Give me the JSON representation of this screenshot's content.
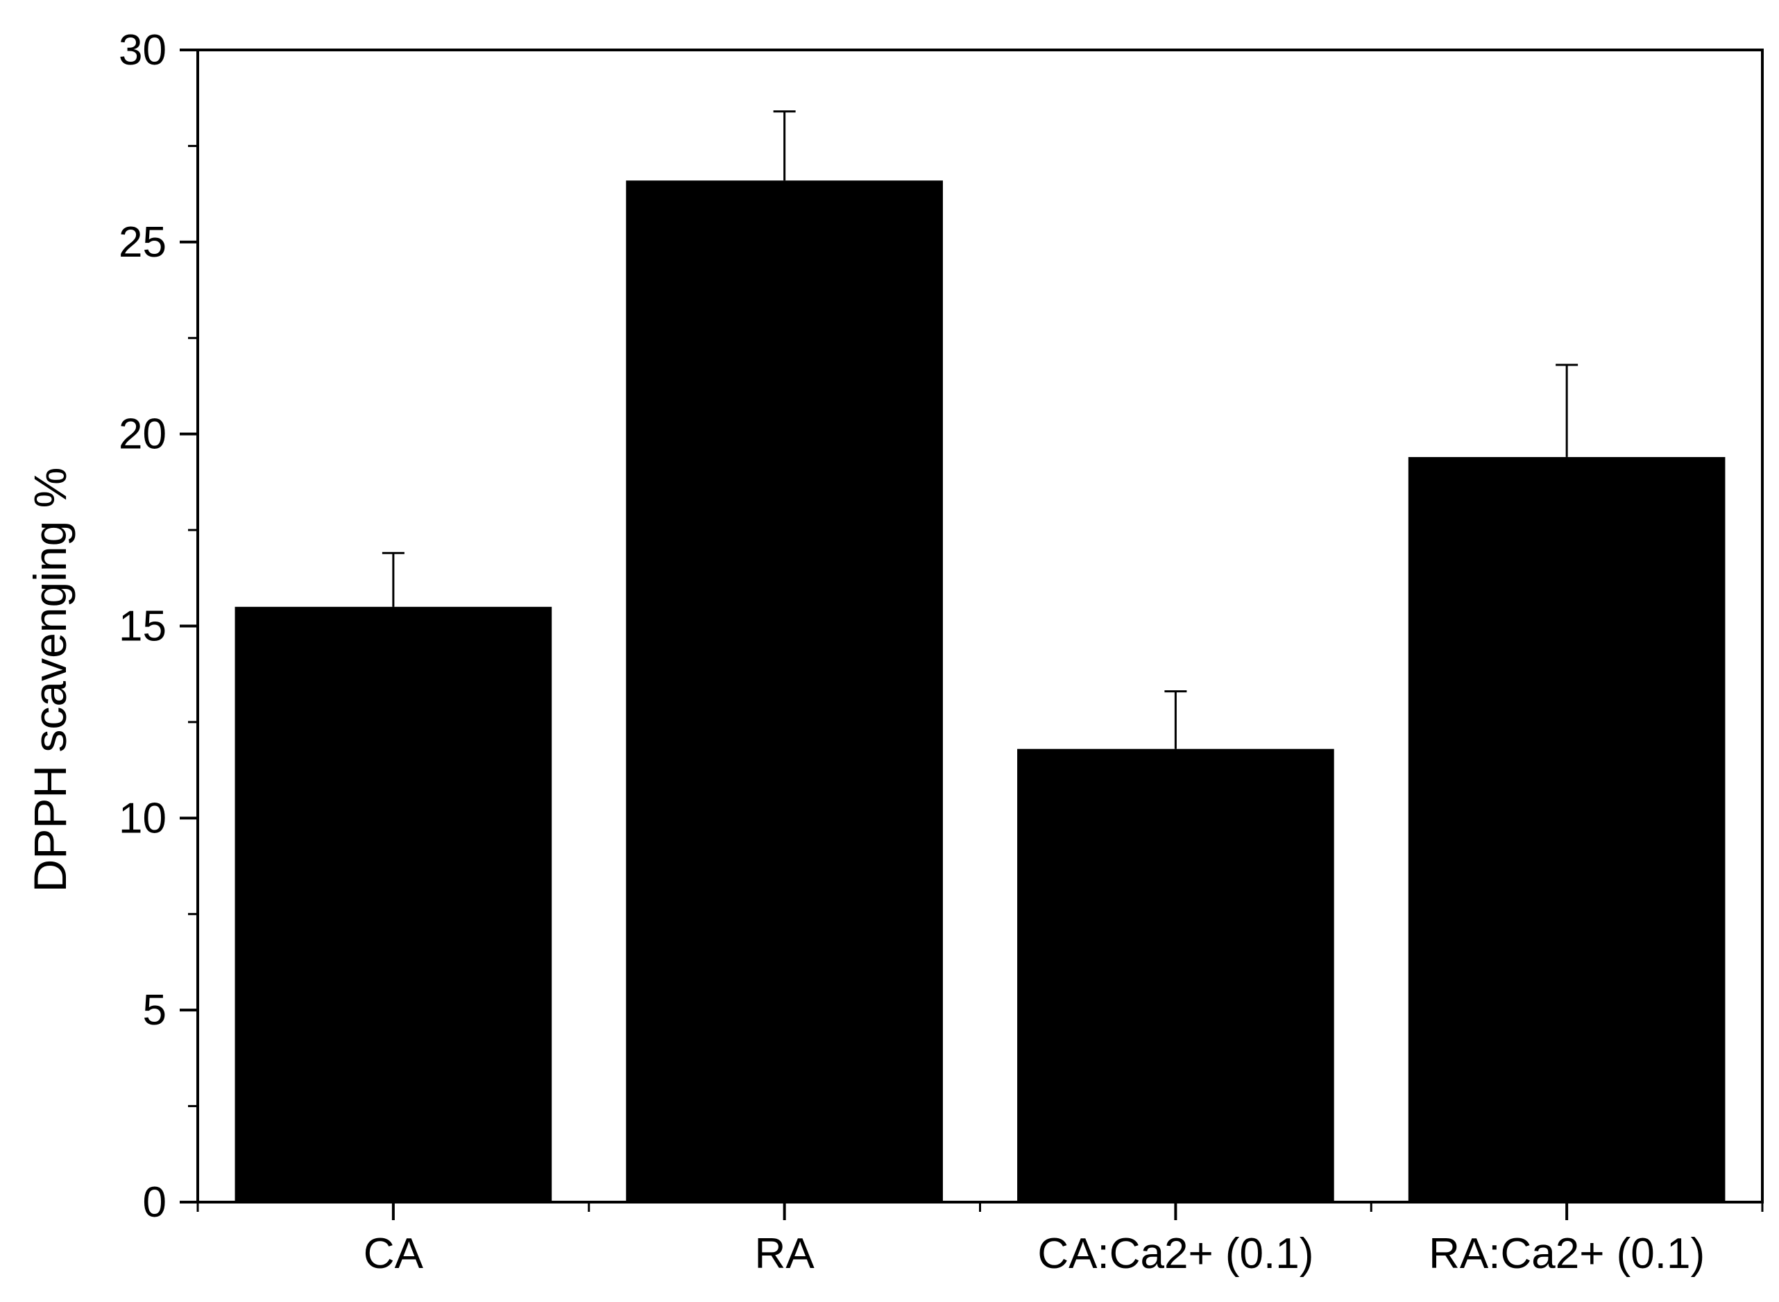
{
  "chart_data": {
    "type": "bar",
    "categories": [
      "CA",
      "RA",
      "CA:Ca2+ (0.1)",
      "RA:Ca2+ (0.1)"
    ],
    "values": [
      15.5,
      26.6,
      11.8,
      19.4
    ],
    "errors": [
      1.4,
      1.8,
      1.5,
      2.4
    ],
    "xlabel": "",
    "ylabel": "DPPH scavenging %",
    "ylim": [
      0,
      30
    ],
    "yticks": [
      0,
      5,
      10,
      15,
      20,
      25,
      30
    ],
    "bar_color": "#000000",
    "grid": false,
    "legend": "none"
  }
}
